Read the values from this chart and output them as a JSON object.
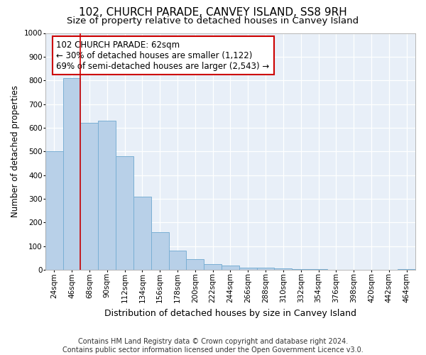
{
  "title": "102, CHURCH PARADE, CANVEY ISLAND, SS8 9RH",
  "subtitle": "Size of property relative to detached houses in Canvey Island",
  "xlabel": "Distribution of detached houses by size in Canvey Island",
  "ylabel": "Number of detached properties",
  "footer_line1": "Contains HM Land Registry data © Crown copyright and database right 2024.",
  "footer_line2": "Contains public sector information licensed under the Open Government Licence v3.0.",
  "categories": [
    "24sqm",
    "46sqm",
    "68sqm",
    "90sqm",
    "112sqm",
    "134sqm",
    "156sqm",
    "178sqm",
    "200sqm",
    "222sqm",
    "244sqm",
    "266sqm",
    "288sqm",
    "310sqm",
    "332sqm",
    "354sqm",
    "376sqm",
    "398sqm",
    "420sqm",
    "442sqm",
    "464sqm"
  ],
  "values": [
    500,
    810,
    620,
    630,
    480,
    310,
    160,
    80,
    45,
    25,
    18,
    10,
    8,
    5,
    3,
    2,
    1,
    1,
    0,
    0,
    2
  ],
  "bar_color": "#b8d0e8",
  "bar_edge_color": "#7aafd4",
  "vline_index": 2,
  "vline_color": "#cc0000",
  "annotation_text": "102 CHURCH PARADE: 62sqm\n← 30% of detached houses are smaller (1,122)\n69% of semi-detached houses are larger (2,543) →",
  "annotation_box_color": "#ffffff",
  "annotation_box_edge_color": "#cc0000",
  "ylim": [
    0,
    1000
  ],
  "plot_bg_color": "#e8eff8",
  "grid_color": "#ffffff",
  "title_fontsize": 11,
  "subtitle_fontsize": 9.5,
  "tick_fontsize": 7.5,
  "ylabel_fontsize": 8.5,
  "xlabel_fontsize": 9,
  "footer_fontsize": 7,
  "ann_fontsize": 8.5
}
